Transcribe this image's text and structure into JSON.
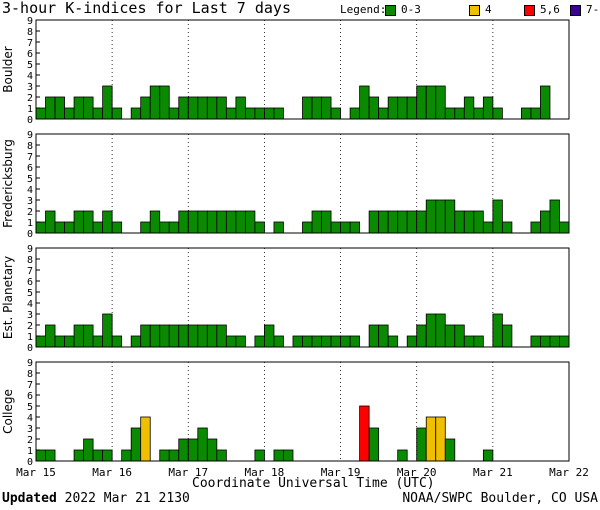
{
  "title": "3-hour K-indices for Last 7 days",
  "legend": {
    "label": "Legend:",
    "items": [
      {
        "label": "0-3",
        "color": "#0a8a00"
      },
      {
        "label": "4",
        "color": "#f0c000"
      },
      {
        "label": "5,6",
        "color": "#ff0000"
      },
      {
        "label": "7-9",
        "color": "#3c0096"
      }
    ]
  },
  "chart_data": {
    "type": "bar",
    "x_ticks": [
      "Mar 15",
      "Mar 16",
      "Mar 17",
      "Mar 18",
      "Mar 19",
      "Mar 20",
      "Mar 21",
      "Mar 22"
    ],
    "xlabel": "Coordinate Universal Time (UTC)",
    "ylim": [
      0,
      9
    ],
    "y_ticks": [
      0,
      1,
      2,
      3,
      4,
      5,
      6,
      7,
      8,
      9
    ],
    "interval_hours": 3,
    "colors": {
      "k0_3": "#0a8a00",
      "k4": "#f0c000",
      "k5_6": "#ff0000",
      "k7_9": "#3c0096"
    },
    "panels": [
      {
        "name": "Boulder",
        "values": [
          1,
          2,
          2,
          1,
          2,
          2,
          1,
          3,
          1,
          0,
          1,
          2,
          3,
          3,
          1,
          2,
          2,
          2,
          2,
          2,
          1,
          2,
          1,
          1,
          1,
          1,
          0,
          0,
          2,
          2,
          2,
          1,
          0,
          1,
          3,
          2,
          1,
          2,
          2,
          2,
          3,
          3,
          3,
          1,
          1,
          2,
          1,
          2,
          1,
          0,
          0,
          1,
          1,
          3,
          0,
          0
        ]
      },
      {
        "name": "Fredericksburg",
        "values": [
          1,
          2,
          1,
          1,
          2,
          2,
          1,
          2,
          1,
          0,
          0,
          1,
          2,
          1,
          1,
          2,
          2,
          2,
          2,
          2,
          2,
          2,
          2,
          1,
          0,
          1,
          0,
          0,
          1,
          2,
          2,
          1,
          1,
          1,
          0,
          2,
          2,
          2,
          2,
          2,
          2,
          3,
          3,
          3,
          2,
          2,
          2,
          1,
          3,
          1,
          0,
          0,
          1,
          2,
          3,
          1
        ]
      },
      {
        "name": "Est. Planetary",
        "values": [
          1,
          2,
          1,
          1,
          2,
          2,
          1,
          3,
          1,
          0,
          1,
          2,
          2,
          2,
          2,
          2,
          2,
          2,
          2,
          2,
          1,
          1,
          0,
          1,
          2,
          1,
          0,
          1,
          1,
          1,
          1,
          1,
          1,
          1,
          0,
          2,
          2,
          1,
          0,
          1,
          2,
          3,
          3,
          2,
          2,
          1,
          1,
          0,
          3,
          2,
          0,
          0,
          1,
          1,
          1,
          1
        ]
      },
      {
        "name": "College",
        "values": [
          1,
          1,
          0,
          0,
          1,
          2,
          1,
          1,
          0,
          1,
          3,
          4,
          0,
          1,
          1,
          2,
          2,
          3,
          2,
          1,
          0,
          0,
          0,
          1,
          0,
          1,
          1,
          0,
          0,
          0,
          0,
          0,
          0,
          0,
          5,
          3,
          0,
          0,
          1,
          0,
          3,
          4,
          4,
          2,
          0,
          0,
          0,
          1,
          0,
          0,
          0,
          0,
          0,
          0,
          0,
          0
        ]
      }
    ]
  },
  "footer": {
    "updated_label": "Updated",
    "updated_value": "2022 Mar 21 2130",
    "source": "NOAA/SWPC Boulder, CO USA"
  }
}
